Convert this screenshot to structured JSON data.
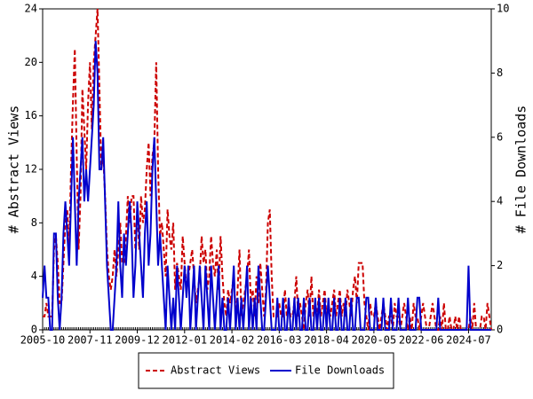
{
  "chart_data": {
    "type": "line",
    "y_label": "# Abstract Views",
    "y2_label": "# File Downloads",
    "x": [
      "2005-10",
      "2005-11",
      "2005-12",
      "2006-01",
      "2006-02",
      "2006-03",
      "2006-04",
      "2006-05",
      "2006-06",
      "2006-07",
      "2006-08",
      "2006-09",
      "2006-10",
      "2006-11",
      "2006-12",
      "2007-01",
      "2007-02",
      "2007-03",
      "2007-04",
      "2007-05",
      "2007-06",
      "2007-07",
      "2007-08",
      "2007-09",
      "2007-10",
      "2007-11",
      "2007-12",
      "2008-01",
      "2008-02",
      "2008-03",
      "2008-04",
      "2008-05",
      "2008-06",
      "2008-07",
      "2008-08",
      "2008-09",
      "2008-10",
      "2008-11",
      "2008-12",
      "2009-01",
      "2009-02",
      "2009-03",
      "2009-04",
      "2009-05",
      "2009-06",
      "2009-07",
      "2009-08",
      "2009-09",
      "2009-10",
      "2009-11",
      "2009-12",
      "2010-01",
      "2010-02",
      "2010-03",
      "2010-04",
      "2010-05",
      "2010-06",
      "2010-07",
      "2010-08",
      "2010-09",
      "2010-10",
      "2010-11",
      "2010-12",
      "2011-01",
      "2011-02",
      "2011-03",
      "2011-04",
      "2011-05",
      "2011-06",
      "2011-07",
      "2011-08",
      "2011-09",
      "2011-10",
      "2011-11",
      "2011-12",
      "2012-01",
      "2012-02",
      "2012-03",
      "2012-04",
      "2012-05",
      "2012-06",
      "2012-07",
      "2012-08",
      "2012-09",
      "2012-10",
      "2012-11",
      "2012-12",
      "2013-01",
      "2013-02",
      "2013-03",
      "2013-04",
      "2013-05",
      "2013-06",
      "2013-07",
      "2013-08",
      "2013-09",
      "2013-10",
      "2013-11",
      "2013-12",
      "2014-01",
      "2014-02",
      "2014-03",
      "2014-04",
      "2014-05",
      "2014-06",
      "2014-07",
      "2014-08",
      "2014-09",
      "2014-10",
      "2014-11",
      "2014-12",
      "2015-01",
      "2015-02",
      "2015-03",
      "2015-04",
      "2015-05",
      "2015-06",
      "2015-07",
      "2015-08",
      "2015-09",
      "2015-10",
      "2015-11",
      "2015-12",
      "2016-01",
      "2016-02",
      "2016-03",
      "2016-04",
      "2016-05",
      "2016-06",
      "2016-07",
      "2016-08",
      "2016-09",
      "2016-10",
      "2016-11",
      "2016-12",
      "2017-01",
      "2017-02",
      "2017-03",
      "2017-04",
      "2017-05",
      "2017-06",
      "2017-07",
      "2017-08",
      "2017-09",
      "2017-10",
      "2017-11",
      "2017-12",
      "2018-01",
      "2018-02",
      "2018-03",
      "2018-04",
      "2018-05",
      "2018-06",
      "2018-07",
      "2018-08",
      "2018-09",
      "2018-10",
      "2018-11",
      "2018-12",
      "2019-01",
      "2019-02",
      "2019-03",
      "2019-04",
      "2019-05",
      "2019-06",
      "2019-07",
      "2019-08",
      "2019-09",
      "2019-10",
      "2019-11",
      "2019-12",
      "2020-01",
      "2020-02",
      "2020-03",
      "2020-04",
      "2020-05",
      "2020-06",
      "2020-07",
      "2020-08",
      "2020-09",
      "2020-10",
      "2020-11",
      "2020-12",
      "2021-01",
      "2021-02",
      "2021-03",
      "2021-04",
      "2021-05",
      "2021-06",
      "2021-07",
      "2021-08",
      "2021-09",
      "2021-10",
      "2021-11",
      "2021-12",
      "2022-01",
      "2022-02",
      "2022-03",
      "2022-04",
      "2022-05",
      "2022-06",
      "2022-07",
      "2022-08",
      "2022-09",
      "2022-10",
      "2022-11",
      "2022-12",
      "2023-01",
      "2023-02",
      "2023-03",
      "2023-04",
      "2023-05",
      "2023-06",
      "2023-07",
      "2023-08",
      "2023-09",
      "2023-10",
      "2023-11",
      "2023-12",
      "2024-01",
      "2024-02",
      "2024-03",
      "2024-04",
      "2024-05",
      "2024-06",
      "2024-07",
      "2024-08",
      "2024-09",
      "2024-10",
      "2024-11",
      "2024-12",
      "2025-01",
      "2025-02",
      "2025-03",
      "2025-04",
      "2025-05",
      "2025-06",
      "2025-07"
    ],
    "xlim": [
      "2005-10",
      "2025-07"
    ],
    "xticks": [
      "2005-10",
      "2007-11",
      "2009-12",
      "2012-01",
      "2014-02",
      "2016-03",
      "2018-04",
      "2020-05",
      "2022-06",
      "2024-07"
    ],
    "ylim": [
      0,
      24
    ],
    "yticks": [
      0,
      4,
      8,
      12,
      16,
      20,
      24
    ],
    "y2lim": [
      0,
      10
    ],
    "y2ticks": [
      0,
      2,
      4,
      6,
      8,
      10
    ],
    "legend": "bottom",
    "series": [
      {
        "name": "Abstract Views",
        "color": "#cc0000",
        "dash": true,
        "values": [
          1,
          1,
          2,
          1,
          1,
          1,
          6,
          7,
          5,
          2,
          2,
          5,
          8,
          9,
          6,
          12,
          17,
          21,
          13,
          6,
          10,
          18,
          15,
          12,
          17,
          20,
          15,
          20,
          22,
          24,
          18,
          12,
          13,
          10,
          6,
          4,
          3,
          4,
          6,
          4,
          6,
          8,
          5,
          5,
          7,
          10,
          8,
          10,
          10,
          6,
          9,
          6,
          10,
          8,
          9,
          12,
          14,
          10,
          13,
          14,
          20,
          12,
          7,
          8,
          6,
          4,
          9,
          7,
          6,
          8,
          3,
          5,
          4,
          3,
          7,
          5,
          3,
          4,
          5,
          6,
          4,
          2,
          3,
          4,
          7,
          5,
          6,
          3,
          4,
          7,
          5,
          4,
          6,
          3,
          7,
          4,
          2,
          1,
          3,
          2,
          3,
          4,
          1,
          3,
          6,
          1,
          2,
          3,
          4,
          6,
          2,
          3,
          1,
          4,
          2,
          5,
          3,
          1,
          3,
          8,
          9,
          4,
          1,
          1,
          1,
          2,
          1,
          1,
          3,
          1,
          2,
          1,
          1,
          2,
          4,
          1,
          2,
          1,
          0,
          2,
          3,
          1,
          4,
          1,
          2,
          1,
          3,
          1,
          2,
          3,
          1,
          2,
          1,
          2,
          3,
          1,
          2,
          3,
          1,
          2,
          1,
          3,
          2,
          1,
          3,
          4,
          2,
          5,
          5,
          5,
          2,
          1,
          0,
          2,
          1,
          1,
          2,
          1,
          0,
          1,
          2,
          1,
          0,
          1,
          1,
          0,
          2,
          1,
          1,
          0,
          1,
          2,
          1,
          0,
          1,
          0,
          2,
          1,
          1,
          0,
          1,
          2,
          1,
          0,
          0,
          1,
          2,
          1,
          0,
          0,
          1,
          0,
          2,
          0,
          0,
          1,
          0,
          0,
          1,
          0,
          1,
          0,
          0,
          0,
          0,
          0,
          1,
          0,
          2,
          0,
          0,
          0,
          1,
          1,
          0,
          2,
          1,
          0
        ]
      },
      {
        "name": "File Downloads",
        "color": "#0000cc",
        "dash": false,
        "axis": "y2",
        "values": [
          1,
          2,
          1,
          1,
          0,
          0,
          3,
          3,
          1,
          0,
          1,
          3,
          4,
          3,
          2,
          4,
          6,
          4,
          2,
          4,
          5,
          6,
          4,
          5,
          4,
          5,
          6,
          7,
          9,
          8,
          5,
          5,
          6,
          4,
          2,
          1,
          0,
          0,
          1,
          2,
          4,
          2,
          1,
          3,
          2,
          3,
          4,
          3,
          1,
          2,
          4,
          3,
          2,
          1,
          3,
          4,
          2,
          3,
          5,
          6,
          4,
          2,
          3,
          2,
          1,
          0,
          2,
          1,
          0,
          1,
          0,
          2,
          1,
          0,
          1,
          2,
          1,
          2,
          0,
          1,
          2,
          0,
          1,
          2,
          1,
          0,
          2,
          1,
          0,
          2,
          1,
          0,
          1,
          2,
          0,
          1,
          0,
          0,
          1,
          0,
          1,
          2,
          0,
          1,
          0,
          1,
          0,
          1,
          2,
          0,
          1,
          0,
          1,
          0,
          2,
          1,
          0,
          0,
          1,
          2,
          1,
          0,
          0,
          0,
          1,
          0,
          0,
          1,
          0,
          0,
          1,
          0,
          0,
          1,
          0,
          1,
          0,
          0,
          1,
          0,
          0,
          1,
          0,
          0,
          1,
          0,
          1,
          0,
          0,
          1,
          0,
          1,
          0,
          0,
          1,
          0,
          0,
          1,
          0,
          0,
          1,
          0,
          0,
          1,
          0,
          0,
          1,
          1,
          0,
          0,
          0,
          1,
          1,
          0,
          0,
          0,
          1,
          0,
          0,
          0,
          1,
          0,
          0,
          0,
          1,
          0,
          0,
          0,
          1,
          0,
          0,
          0,
          0,
          1,
          0,
          0,
          0,
          0,
          1,
          1,
          0,
          0,
          0,
          0,
          0,
          0,
          0,
          0,
          0,
          1,
          0,
          0,
          0,
          0,
          0,
          0,
          0,
          0,
          0,
          0,
          0,
          0,
          0,
          0,
          0,
          2,
          0,
          0,
          0,
          0,
          0,
          0,
          0,
          0,
          0,
          0,
          0,
          0
        ]
      }
    ]
  }
}
